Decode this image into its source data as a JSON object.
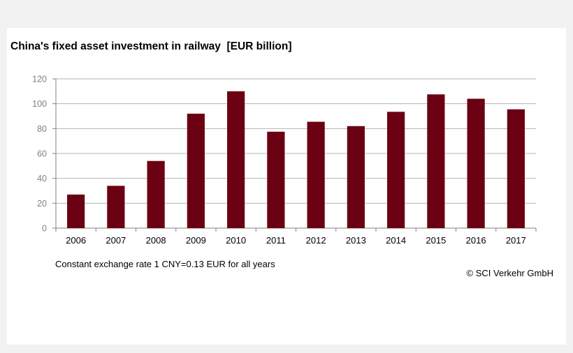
{
  "chart_data": {
    "type": "bar",
    "title": "China's fixed asset investment in railway  [EUR billion]",
    "categories": [
      "2006",
      "2007",
      "2008",
      "2009",
      "2010",
      "2011",
      "2012",
      "2013",
      "2014",
      "2015",
      "2016",
      "2017"
    ],
    "values": [
      27,
      34,
      54,
      92,
      110,
      77.5,
      85.5,
      82,
      93.5,
      107.5,
      104,
      95.5
    ],
    "ylim": [
      0,
      120
    ],
    "yticks": [
      0,
      20,
      40,
      60,
      80,
      100,
      120
    ],
    "xlabel": "",
    "ylabel": "",
    "grid": true,
    "bar_color": "#6b0012",
    "grid_color": "#b3b3b3",
    "axis_color": "#808080",
    "tick_label_color": "#808080"
  },
  "notes": {
    "exchange_rate": "Constant exchange rate 1 CNY=0.13 EUR for all years",
    "credit": "© SCI Verkehr GmbH"
  }
}
